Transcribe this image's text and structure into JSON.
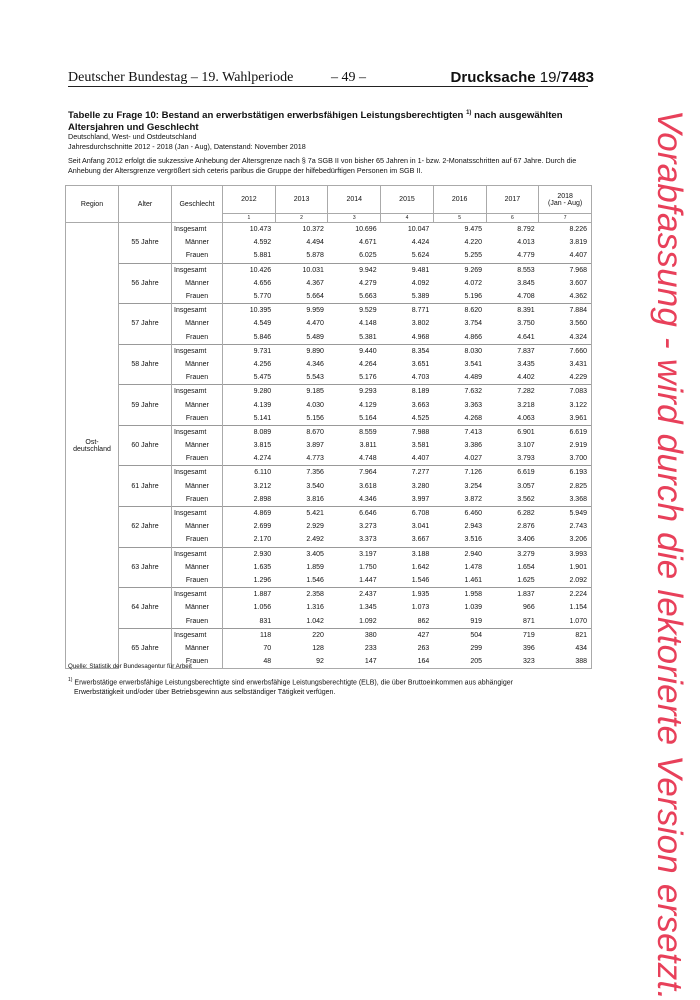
{
  "header": {
    "left": "Deutscher Bundestag – 19. Wahlperiode",
    "page": "– 49 –",
    "doc_label": "Drucksache",
    "doc_prefix": "19/",
    "doc_number": "7483"
  },
  "title": {
    "main": "Tabelle zu Frage 10: Bestand an erwerbstätigen erwerbsfähigen Leistungsberechtigten",
    "footnote_ref": "1)",
    "main_cont": "nach ausgewählten Altersjahren und Geschlecht",
    "sub1": "Deutschland, West- und Ostdeutschland",
    "sub2": "Jahresdurchschnitte 2012 - 2018 (Jan - Aug), Datenstand: November 2018",
    "note": "Seit Anfang 2012 erfolgt die sukzessive Anhebung der Altersgrenze nach § 7a SGB II von bisher 65 Jahren in 1- bzw. 2-Monatsschritten auf 67 Jahre. Durch die Anhebung der Altersgrenze vergrößert sich ceteris paribus die Gruppe der hilfebedürftigen Personen im SGB II."
  },
  "table": {
    "headers": {
      "region": "Region",
      "alter": "Alter",
      "geschlecht": "Geschlecht"
    },
    "years": [
      "2012",
      "2013",
      "2014",
      "2015",
      "2016",
      "2017",
      "2018\n(Jan - Aug)"
    ],
    "col_numbers": [
      "1",
      "2",
      "3",
      "4",
      "5",
      "6",
      "7"
    ],
    "region": "Ost-\ndeutschland",
    "sexes": [
      "Insgesamt",
      "Männer",
      "Frauen"
    ],
    "groups": [
      {
        "age": "55 Jahre",
        "rows": [
          [
            "10.473",
            "10.372",
            "10.696",
            "10.047",
            "9.475",
            "8.792",
            "8.226"
          ],
          [
            "4.592",
            "4.494",
            "4.671",
            "4.424",
            "4.220",
            "4.013",
            "3.819"
          ],
          [
            "5.881",
            "5.878",
            "6.025",
            "5.624",
            "5.255",
            "4.779",
            "4.407"
          ]
        ]
      },
      {
        "age": "56 Jahre",
        "rows": [
          [
            "10.426",
            "10.031",
            "9.942",
            "9.481",
            "9.269",
            "8.553",
            "7.968"
          ],
          [
            "4.656",
            "4.367",
            "4.279",
            "4.092",
            "4.072",
            "3.845",
            "3.607"
          ],
          [
            "5.770",
            "5.664",
            "5.663",
            "5.389",
            "5.196",
            "4.708",
            "4.362"
          ]
        ]
      },
      {
        "age": "57 Jahre",
        "rows": [
          [
            "10.395",
            "9.959",
            "9.529",
            "8.771",
            "8.620",
            "8.391",
            "7.884"
          ],
          [
            "4.549",
            "4.470",
            "4.148",
            "3.802",
            "3.754",
            "3.750",
            "3.560"
          ],
          [
            "5.846",
            "5.489",
            "5.381",
            "4.968",
            "4.866",
            "4.641",
            "4.324"
          ]
        ]
      },
      {
        "age": "58 Jahre",
        "rows": [
          [
            "9.731",
            "9.890",
            "9.440",
            "8.354",
            "8.030",
            "7.837",
            "7.660"
          ],
          [
            "4.256",
            "4.346",
            "4.264",
            "3.651",
            "3.541",
            "3.435",
            "3.431"
          ],
          [
            "5.475",
            "5.543",
            "5.176",
            "4.703",
            "4.489",
            "4.402",
            "4.229"
          ]
        ]
      },
      {
        "age": "59 Jahre",
        "rows": [
          [
            "9.280",
            "9.185",
            "9.293",
            "8.189",
            "7.632",
            "7.282",
            "7.083"
          ],
          [
            "4.139",
            "4.030",
            "4.129",
            "3.663",
            "3.363",
            "3.218",
            "3.122"
          ],
          [
            "5.141",
            "5.156",
            "5.164",
            "4.525",
            "4.268",
            "4.063",
            "3.961"
          ]
        ]
      },
      {
        "age": "60 Jahre",
        "rows": [
          [
            "8.089",
            "8.670",
            "8.559",
            "7.988",
            "7.413",
            "6.901",
            "6.619"
          ],
          [
            "3.815",
            "3.897",
            "3.811",
            "3.581",
            "3.386",
            "3.107",
            "2.919"
          ],
          [
            "4.274",
            "4.773",
            "4.748",
            "4.407",
            "4.027",
            "3.793",
            "3.700"
          ]
        ]
      },
      {
        "age": "61 Jahre",
        "rows": [
          [
            "6.110",
            "7.356",
            "7.964",
            "7.277",
            "7.126",
            "6.619",
            "6.193"
          ],
          [
            "3.212",
            "3.540",
            "3.618",
            "3.280",
            "3.254",
            "3.057",
            "2.825"
          ],
          [
            "2.898",
            "3.816",
            "4.346",
            "3.997",
            "3.872",
            "3.562",
            "3.368"
          ]
        ]
      },
      {
        "age": "62 Jahre",
        "rows": [
          [
            "4.869",
            "5.421",
            "6.646",
            "6.708",
            "6.460",
            "6.282",
            "5.949"
          ],
          [
            "2.699",
            "2.929",
            "3.273",
            "3.041",
            "2.943",
            "2.876",
            "2.743"
          ],
          [
            "2.170",
            "2.492",
            "3.373",
            "3.667",
            "3.516",
            "3.406",
            "3.206"
          ]
        ]
      },
      {
        "age": "63 Jahre",
        "rows": [
          [
            "2.930",
            "3.405",
            "3.197",
            "3.188",
            "2.940",
            "3.279",
            "3.993"
          ],
          [
            "1.635",
            "1.859",
            "1.750",
            "1.642",
            "1.478",
            "1.654",
            "1.901"
          ],
          [
            "1.296",
            "1.546",
            "1.447",
            "1.546",
            "1.461",
            "1.625",
            "2.092"
          ]
        ]
      },
      {
        "age": "64 Jahre",
        "rows": [
          [
            "1.887",
            "2.358",
            "2.437",
            "1.935",
            "1.958",
            "1.837",
            "2.224"
          ],
          [
            "1.056",
            "1.316",
            "1.345",
            "1.073",
            "1.039",
            "966",
            "1.154"
          ],
          [
            "831",
            "1.042",
            "1.092",
            "862",
            "919",
            "871",
            "1.070"
          ]
        ]
      },
      {
        "age": "65 Jahre",
        "rows": [
          [
            "118",
            "220",
            "380",
            "427",
            "504",
            "719",
            "821"
          ],
          [
            "70",
            "128",
            "233",
            "263",
            "299",
            "396",
            "434"
          ],
          [
            "48",
            "92",
            "147",
            "164",
            "205",
            "323",
            "388"
          ]
        ]
      }
    ]
  },
  "source": "Quelle: Statistik der Bundesagentur für Arbeit",
  "footnote": {
    "mark": "1)",
    "line1": "Erwerbstätige erwerbsfähige Leistungsberechtigte sind erwerbsfähige Leistungsberechtigte (ELB), die über Bruttoeinkommen aus abhängiger",
    "line2": "Erwerbstätigkeit und/oder über Betriebsgewinn aus selbständiger Tätigkeit verfügen."
  },
  "watermark": {
    "text": "Vorabfassung - wird durch die lektorierte Version ersetzt.",
    "color": "#e8405a"
  }
}
